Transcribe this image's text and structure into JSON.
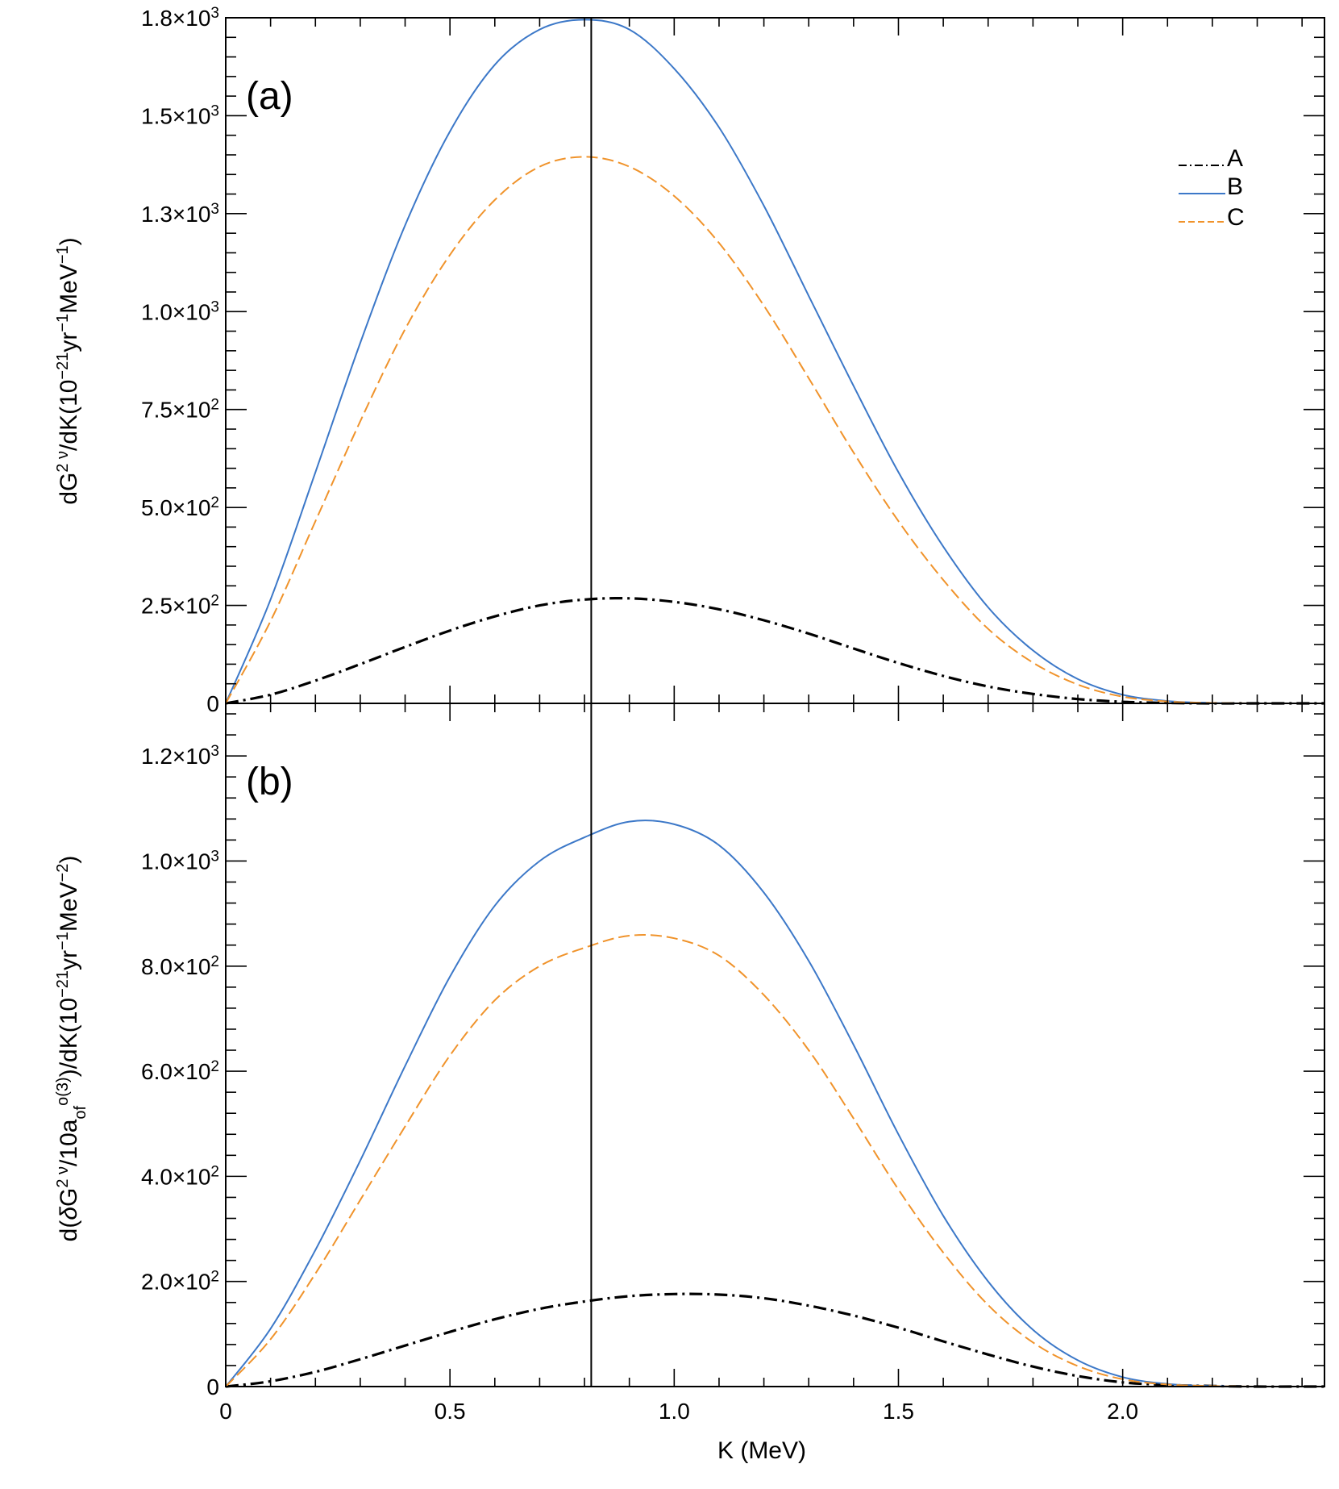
{
  "chart_data": [
    {
      "type": "line",
      "panel_label": "(a)",
      "ylabel": {
        "base": "dG",
        "sup1": "2 ν",
        "mid": "/dK(10",
        "sup2": "−21",
        "mid2": "yr",
        "sup3": "−1",
        "mid3": "MeV",
        "sup4": "−1",
        "end": ")"
      },
      "xlim": [
        0,
        2.45
      ],
      "ylim": [
        0,
        1750
      ],
      "ytick_values": [
        0,
        250,
        500,
        750,
        1000,
        1250,
        1500,
        1750
      ],
      "ytick_labels": [
        {
          "mantissa": "0",
          "exp": ""
        },
        {
          "mantissa": "2.5×10",
          "exp": "2"
        },
        {
          "mantissa": "5.0×10",
          "exp": "2"
        },
        {
          "mantissa": "7.5×10",
          "exp": "2"
        },
        {
          "mantissa": "1.0×10",
          "exp": "3"
        },
        {
          "mantissa": "1.3×10",
          "exp": "3"
        },
        {
          "mantissa": "1.5×10",
          "exp": "3"
        },
        {
          "mantissa": "1.8×10",
          "exp": "3"
        }
      ],
      "vertical_line_x": 0.815,
      "legend": [
        "A",
        "B",
        "C"
      ],
      "series": [
        {
          "name": "A",
          "style": "dashdot",
          "color": "#000000",
          "x": [
            0,
            0.1,
            0.2,
            0.3,
            0.4,
            0.5,
            0.6,
            0.7,
            0.8,
            0.9,
            1.0,
            1.1,
            1.2,
            1.3,
            1.4,
            1.5,
            1.6,
            1.7,
            1.8,
            1.9,
            2.0,
            2.1,
            2.2,
            2.3,
            2.4,
            2.45
          ],
          "y": [
            0,
            22,
            58,
            100,
            144,
            186,
            222,
            250,
            265,
            268,
            259,
            240,
            212,
            178,
            140,
            103,
            70,
            43,
            24,
            11,
            4,
            1,
            0,
            0,
            0,
            0
          ]
        },
        {
          "name": "B",
          "style": "solid",
          "color": "#3c78c8",
          "x": [
            0,
            0.1,
            0.2,
            0.3,
            0.4,
            0.5,
            0.6,
            0.7,
            0.8,
            0.9,
            1.0,
            1.1,
            1.2,
            1.3,
            1.4,
            1.5,
            1.6,
            1.7,
            1.8,
            1.9,
            2.0,
            2.1,
            2.2,
            2.3,
            2.4,
            2.45
          ],
          "y": [
            0,
            265,
            590,
            920,
            1220,
            1460,
            1630,
            1720,
            1745,
            1720,
            1620,
            1470,
            1270,
            1040,
            810,
            590,
            400,
            245,
            135,
            62,
            22,
            6,
            1,
            0,
            0,
            0
          ]
        },
        {
          "name": "C",
          "style": "dashed",
          "color": "#f0932b",
          "x": [
            0,
            0.1,
            0.2,
            0.3,
            0.4,
            0.5,
            0.6,
            0.7,
            0.8,
            0.9,
            1.0,
            1.1,
            1.2,
            1.3,
            1.4,
            1.5,
            1.6,
            1.7,
            1.8,
            1.9,
            2.0,
            2.1,
            2.2,
            2.3,
            2.4,
            2.45
          ],
          "y": [
            0,
            210,
            465,
            720,
            955,
            1145,
            1285,
            1370,
            1395,
            1370,
            1295,
            1175,
            1015,
            830,
            640,
            465,
            315,
            190,
            104,
            48,
            17,
            5,
            1,
            0,
            0,
            0
          ]
        }
      ]
    },
    {
      "type": "line",
      "panel_label": "(b)",
      "ylabel": {
        "p1": "d(",
        "delta": "δ",
        "p2": "G",
        "sup1": "2 ν",
        "p3": "/10a",
        "sub_of": "of",
        "sup_o3": "o(3)",
        "p4": ")/dK(10",
        "sup2": "−21",
        "p5": "yr",
        "sup3": "−1",
        "p6": "MeV",
        "sup4": "−2",
        "p7": ")"
      },
      "xlabel": "K (MeV)",
      "xlim": [
        0,
        2.45
      ],
      "ylim": [
        0,
        1300
      ],
      "xtick_values": [
        0,
        0.5,
        1.0,
        1.5,
        2.0
      ],
      "xtick_labels": [
        "0",
        "0.5",
        "1.0",
        "1.5",
        "2.0"
      ],
      "ytick_values": [
        0,
        200,
        400,
        600,
        800,
        1000,
        1200
      ],
      "ytick_labels": [
        {
          "mantissa": "0",
          "exp": ""
        },
        {
          "mantissa": "2.0×10",
          "exp": "2"
        },
        {
          "mantissa": "4.0×10",
          "exp": "2"
        },
        {
          "mantissa": "6.0×10",
          "exp": "2"
        },
        {
          "mantissa": "8.0×10",
          "exp": "2"
        },
        {
          "mantissa": "1.0×10",
          "exp": "3"
        },
        {
          "mantissa": "1.2×10",
          "exp": "3"
        }
      ],
      "vertical_line_x": 0.815,
      "series": [
        {
          "name": "A",
          "style": "dashdot",
          "color": "#000000",
          "x": [
            0,
            0.1,
            0.2,
            0.3,
            0.4,
            0.5,
            0.6,
            0.7,
            0.8,
            0.9,
            1.0,
            1.1,
            1.2,
            1.3,
            1.4,
            1.5,
            1.6,
            1.7,
            1.8,
            1.9,
            2.0,
            2.1,
            2.2,
            2.3,
            2.4,
            2.45
          ],
          "y": [
            0,
            10,
            28,
            52,
            78,
            104,
            128,
            148,
            162,
            172,
            176,
            175,
            168,
            154,
            135,
            112,
            86,
            61,
            38,
            20,
            8,
            3,
            1,
            0,
            0,
            0
          ]
        },
        {
          "name": "B",
          "style": "solid",
          "color": "#3c78c8",
          "x": [
            0,
            0.1,
            0.2,
            0.3,
            0.4,
            0.5,
            0.6,
            0.7,
            0.8,
            0.9,
            1.0,
            1.1,
            1.2,
            1.3,
            1.4,
            1.5,
            1.6,
            1.7,
            1.8,
            1.9,
            2.0,
            2.1,
            2.2,
            2.3,
            2.4,
            2.45
          ],
          "y": [
            0,
            110,
            260,
            430,
            610,
            780,
            915,
            1000,
            1045,
            1075,
            1070,
            1030,
            940,
            810,
            650,
            480,
            325,
            200,
            108,
            50,
            18,
            5,
            1,
            0,
            0,
            0
          ]
        },
        {
          "name": "C",
          "style": "dashed",
          "color": "#f0932b",
          "x": [
            0,
            0.1,
            0.2,
            0.3,
            0.4,
            0.5,
            0.6,
            0.7,
            0.8,
            0.9,
            1.0,
            1.1,
            1.2,
            1.3,
            1.4,
            1.5,
            1.6,
            1.7,
            1.8,
            1.9,
            2.0,
            2.1,
            2.2,
            2.3,
            2.4,
            2.45
          ],
          "y": [
            0,
            90,
            215,
            355,
            495,
            630,
            735,
            800,
            835,
            858,
            853,
            820,
            745,
            640,
            510,
            375,
            255,
            155,
            84,
            39,
            14,
            4,
            1,
            0,
            0,
            0
          ]
        }
      ]
    }
  ]
}
